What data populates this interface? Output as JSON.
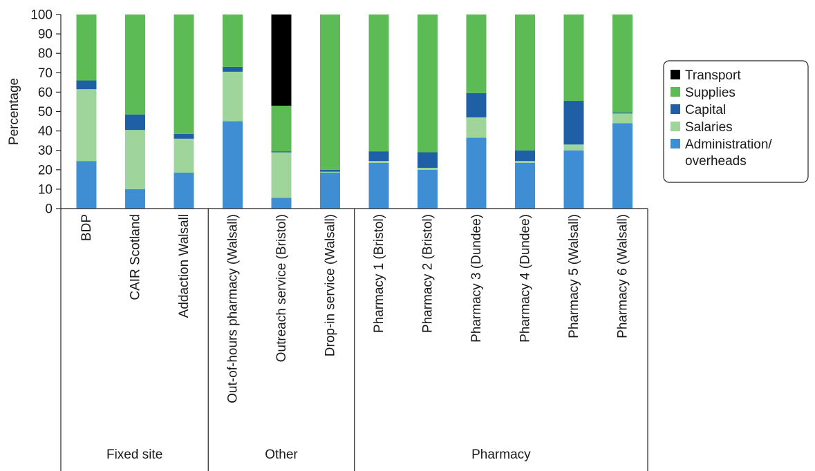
{
  "chart_data": {
    "type": "bar",
    "stacked": true,
    "ylabel": "Percentage",
    "ylim": [
      0,
      100
    ],
    "yticks": [
      0,
      10,
      20,
      30,
      40,
      50,
      60,
      70,
      80,
      90,
      100
    ],
    "grid": false,
    "legend_position": "right",
    "categories": [
      "BDP",
      "CAIR Scotland",
      "Addaction Walsall",
      "Out-of-hours pharmacy (Walsall)",
      "Outreach service (Bristol)",
      "Drop-in service (Walsall)",
      "Pharmacy 1 (Bristol)",
      "Pharmacy 2 (Bristol)",
      "Pharmacy 3 (Dundee)",
      "Pharmacy 4 (Dundee)",
      "Pharmacy 5 (Walsall)",
      "Pharmacy 6 (Walsall)"
    ],
    "groups": [
      {
        "label": "Fixed site",
        "count": 3
      },
      {
        "label": "Other",
        "count": 3
      },
      {
        "label": "Pharmacy",
        "count": 6
      }
    ],
    "series": [
      {
        "name": "Administration/ overheads",
        "color": "#3f8ed3",
        "values": [
          24.5,
          10,
          18.5,
          45,
          5.5,
          18.5,
          23.5,
          20,
          36.5,
          23.5,
          30,
          44
        ]
      },
      {
        "name": "Salaries",
        "color": "#9fd49b",
        "values": [
          37,
          30.5,
          17.5,
          25.5,
          23.5,
          0.5,
          1,
          1,
          10.5,
          1,
          3,
          5
        ]
      },
      {
        "name": "Capital",
        "color": "#1f5fa6",
        "values": [
          4.5,
          8,
          2.5,
          2.5,
          0.5,
          1,
          5,
          8,
          12.5,
          5.5,
          22.5,
          0.5
        ]
      },
      {
        "name": "Supplies",
        "color": "#5cbb55",
        "values": [
          34,
          51.5,
          61.5,
          27,
          23.5,
          80,
          70.5,
          71,
          40.5,
          70,
          44.5,
          50.5
        ]
      },
      {
        "name": "Transport",
        "color": "#000000",
        "values": [
          0,
          0,
          0,
          0,
          47,
          0,
          0,
          0,
          0,
          0,
          0,
          0
        ]
      }
    ],
    "legend": [
      {
        "label": "Transport",
        "color": "#000000"
      },
      {
        "label": "Supplies",
        "color": "#5cbb55"
      },
      {
        "label": "Capital",
        "color": "#1f5fa6"
      },
      {
        "label": "Salaries",
        "color": "#9fd49b"
      },
      {
        "label": [
          "Administration/",
          "overheads"
        ],
        "color": "#3f8ed3"
      }
    ]
  }
}
